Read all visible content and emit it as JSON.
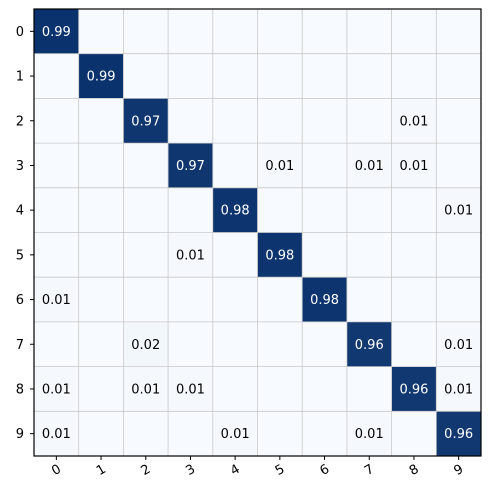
{
  "chart_data": {
    "type": "heatmap",
    "title": "",
    "xlabel": "",
    "ylabel": "",
    "x_categories": [
      "0",
      "1",
      "2",
      "3",
      "4",
      "5",
      "6",
      "7",
      "8",
      "9"
    ],
    "y_categories": [
      "0",
      "1",
      "2",
      "3",
      "4",
      "5",
      "6",
      "7",
      "8",
      "9"
    ],
    "value_range": [
      0,
      1
    ],
    "grid": true,
    "colors": {
      "low": "#f7fbff",
      "high": "#08306b",
      "grid": "#c8c8c8"
    },
    "values": [
      [
        0.99,
        0,
        0,
        0,
        0,
        0,
        0,
        0,
        0,
        0
      ],
      [
        0,
        0.99,
        0,
        0,
        0,
        0,
        0,
        0,
        0,
        0
      ],
      [
        0,
        0,
        0.97,
        0,
        0,
        0,
        0,
        0,
        0.01,
        0
      ],
      [
        0,
        0,
        0,
        0.97,
        0,
        0.01,
        0,
        0.01,
        0.01,
        0
      ],
      [
        0,
        0,
        0,
        0,
        0.98,
        0,
        0,
        0,
        0,
        0.01
      ],
      [
        0,
        0,
        0,
        0.01,
        0,
        0.98,
        0,
        0,
        0,
        0
      ],
      [
        0.01,
        0,
        0,
        0,
        0,
        0,
        0.98,
        0,
        0,
        0
      ],
      [
        0,
        0,
        0.02,
        0,
        0,
        0,
        0,
        0.96,
        0,
        0.01
      ],
      [
        0.01,
        0,
        0.01,
        0.01,
        0,
        0,
        0,
        0,
        0.96,
        0.01
      ],
      [
        0.01,
        0,
        0,
        0,
        0.01,
        0,
        0,
        0.01,
        0,
        0.96
      ]
    ]
  }
}
